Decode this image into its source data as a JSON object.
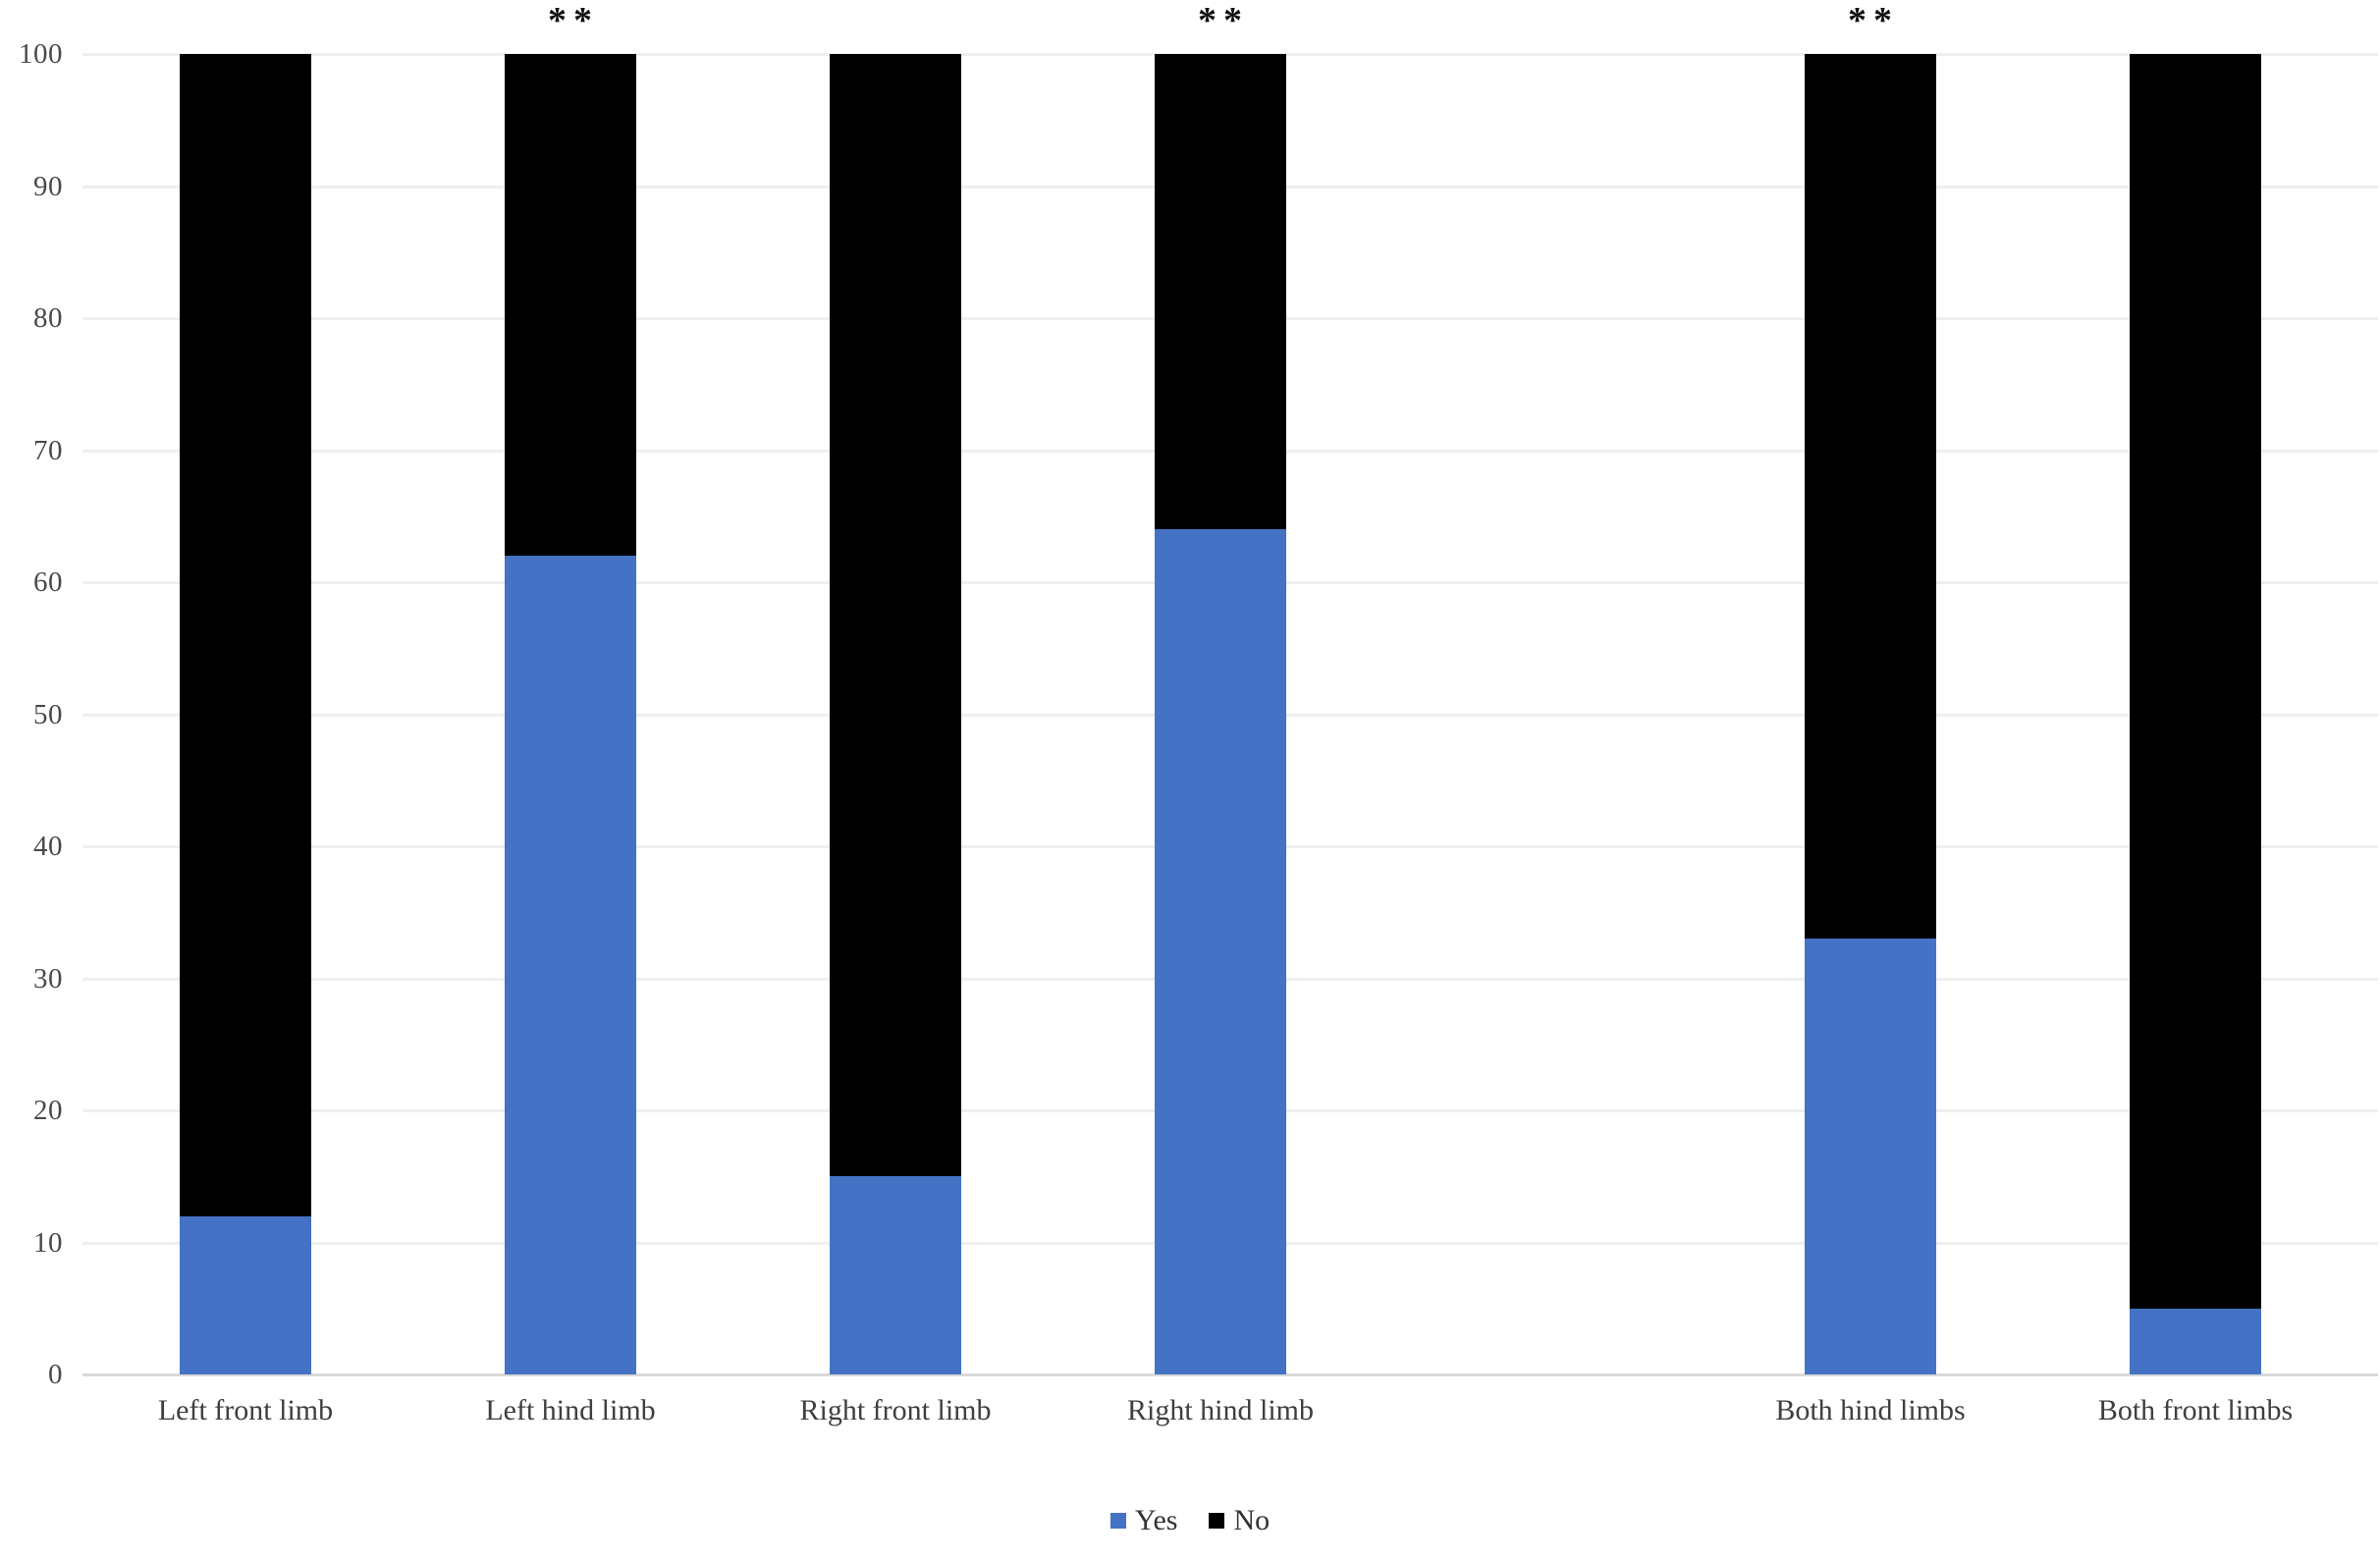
{
  "chart_data": {
    "type": "bar",
    "subtype": "stacked-percentage-column",
    "title": "",
    "xlabel": "",
    "ylabel": "",
    "categories": [
      "Left front limb",
      "Left hind limb",
      "Right front limb",
      "Right hind limb",
      "Both hind limbs",
      "Both front limbs"
    ],
    "series": [
      {
        "name": "Yes",
        "color": "#4472C4",
        "values": [
          12,
          62,
          15,
          64,
          33,
          5
        ]
      },
      {
        "name": "No",
        "color": "#000000",
        "values": [
          88,
          38,
          85,
          36,
          67,
          95
        ]
      }
    ],
    "annotations": [
      {
        "category": "Left hind limb",
        "text": "**"
      },
      {
        "category": "Right hind limb",
        "text": "**"
      },
      {
        "category": "Both hind limbs",
        "text": "**"
      }
    ],
    "y_axis": {
      "min": 0,
      "max": 100,
      "tick_step": 10,
      "ticks": [
        0,
        10,
        20,
        30,
        40,
        50,
        60,
        70,
        80,
        90,
        100
      ]
    },
    "layout_hints": {
      "grid": "horizontal",
      "legend_position": "bottom-center",
      "total_category_slots": 7,
      "category_slot_indices": [
        0,
        1,
        2,
        3,
        5,
        6
      ],
      "gridline_color": "#EFEFEF",
      "baseline_color": "#D9D9D9",
      "tick_label_color": "#4a4a4a",
      "category_label_color": "#3f3f3f"
    },
    "legend": {
      "items": [
        {
          "label": "Yes",
          "color": "#4472C4"
        },
        {
          "label": "No",
          "color": "#000000"
        }
      ]
    }
  }
}
